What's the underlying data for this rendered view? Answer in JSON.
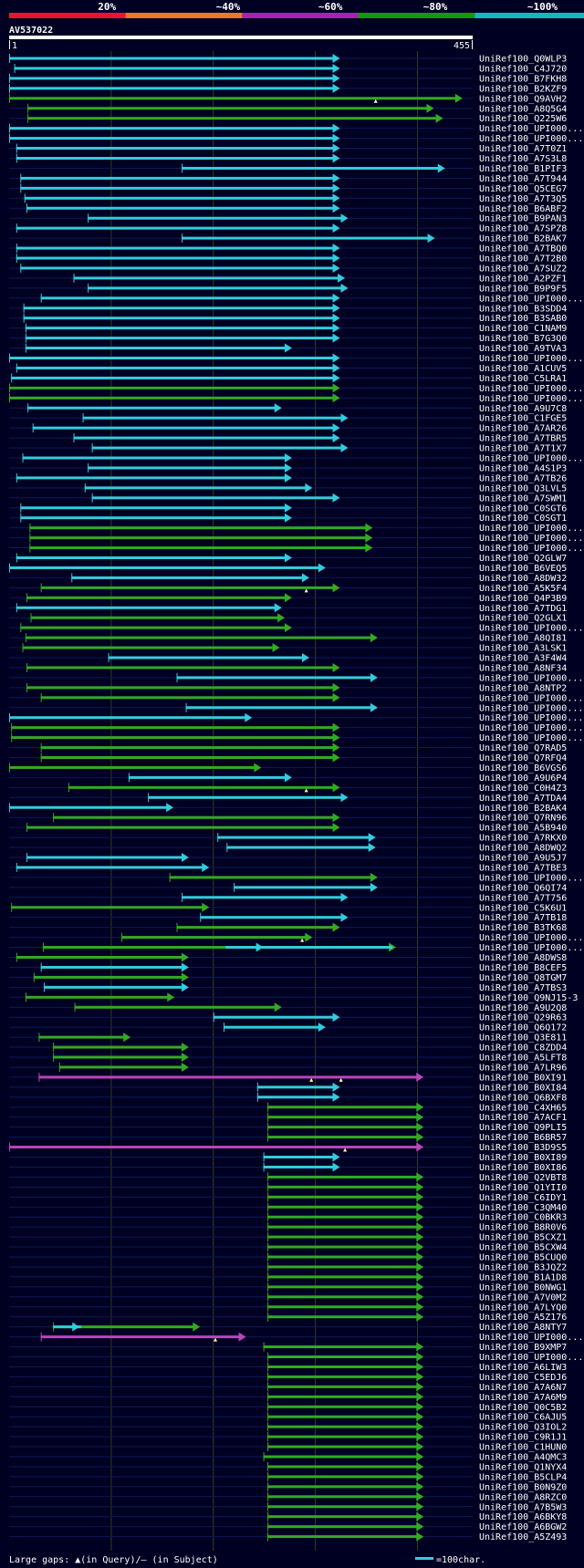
{
  "query": {
    "name": "AV537022",
    "start": "1",
    "end": "455",
    "length": 455
  },
  "scale_labels": [
    "20%",
    "~40%",
    "~60%",
    "~80%",
    "~100%"
  ],
  "scale_colors": [
    "#ee1133",
    "#ee7722",
    "#aa22aa",
    "#119911",
    "#11bbbb"
  ],
  "colors": {
    "cyan": "#33ccdd",
    "green": "#33aa22",
    "magenta": "#bb44bb",
    "background": "#000022"
  },
  "footer": {
    "legend_text": "Large gaps: ▲(in Query)/– (in Subject)",
    "scale_text": "=100char."
  },
  "chart_data": {
    "type": "alignment",
    "x_range": [
      1,
      455
    ],
    "hits": [
      {
        "name": "UniRef100_Q0WLP3",
        "s": 1,
        "e": 325,
        "c": "cyan",
        "t": 1
      },
      {
        "name": "UniRef100_C4J720",
        "s": 6,
        "e": 325,
        "c": "cyan",
        "t": 1
      },
      {
        "name": "UniRef100_B7FKH8",
        "s": 1,
        "e": 325,
        "c": "cyan",
        "t": 1
      },
      {
        "name": "UniRef100_B2KZF9",
        "s": 1,
        "e": 325,
        "c": "cyan",
        "t": 1
      },
      {
        "name": "UniRef100_Q9AVH2",
        "s": 1,
        "e": 445,
        "c": "green",
        "t": 1,
        "m": 360
      },
      {
        "name": "UniRef100_A8Q5G4",
        "s": 19,
        "e": 417,
        "c": "green",
        "t": 1
      },
      {
        "name": "UniRef100_Q225W6",
        "s": 19,
        "e": 426,
        "c": "green",
        "t": 1
      },
      {
        "name": "UniRef100_UPI000...",
        "s": 1,
        "e": 325,
        "c": "cyan",
        "t": 1
      },
      {
        "name": "UniRef100_UPI000...",
        "s": 1,
        "e": 325,
        "c": "cyan",
        "t": 1
      },
      {
        "name": "UniRef100_A7T0Z1",
        "s": 8,
        "e": 325,
        "c": "cyan",
        "t": 1
      },
      {
        "name": "UniRef100_A7S3L8",
        "s": 8,
        "e": 325,
        "c": "cyan",
        "t": 1
      },
      {
        "name": "UniRef100_B1PIF3",
        "s": 170,
        "e": 428,
        "c": "cyan",
        "t": 1
      },
      {
        "name": "UniRef100_A7T944",
        "s": 12,
        "e": 325,
        "c": "cyan",
        "t": 1
      },
      {
        "name": "UniRef100_Q5CEG7",
        "s": 12,
        "e": 325,
        "c": "cyan",
        "t": 1
      },
      {
        "name": "UniRef100_A7T3Q5",
        "s": 16,
        "e": 325,
        "c": "cyan",
        "t": 1
      },
      {
        "name": "UniRef100_B6ABF2",
        "s": 18,
        "e": 325,
        "c": "cyan",
        "t": 1
      },
      {
        "name": "UniRef100_B9PAN3",
        "s": 78,
        "e": 333,
        "c": "cyan",
        "t": 1
      },
      {
        "name": "UniRef100_A7SPZ8",
        "s": 8,
        "e": 325,
        "c": "cyan",
        "t": 1
      },
      {
        "name": "UniRef100_B2BAK7",
        "s": 170,
        "e": 418,
        "c": "cyan",
        "t": 1
      },
      {
        "name": "UniRef100_A7TBQ0",
        "s": 8,
        "e": 325,
        "c": "cyan",
        "t": 1
      },
      {
        "name": "UniRef100_A7T2B0",
        "s": 8,
        "e": 325,
        "c": "cyan",
        "t": 1
      },
      {
        "name": "UniRef100_A7SUZ2",
        "s": 12,
        "e": 325,
        "c": "cyan",
        "t": 1
      },
      {
        "name": "UniRef100_A2PZF1",
        "s": 64,
        "e": 330,
        "c": "cyan",
        "t": 1
      },
      {
        "name": "UniRef100_B9P9F5",
        "s": 78,
        "e": 333,
        "c": "cyan",
        "t": 1
      },
      {
        "name": "UniRef100_UPI000...",
        "s": 32,
        "e": 325,
        "c": "cyan",
        "t": 1
      },
      {
        "name": "UniRef100_B3SDD4",
        "s": 15,
        "e": 325,
        "c": "cyan",
        "t": 1
      },
      {
        "name": "UniRef100_B3SAB0",
        "s": 15,
        "e": 325,
        "c": "cyan",
        "t": 1
      },
      {
        "name": "UniRef100_C1NAM9",
        "s": 17,
        "e": 325,
        "c": "cyan",
        "t": 1
      },
      {
        "name": "UniRef100_B7G3Q0",
        "s": 17,
        "e": 325,
        "c": "cyan",
        "t": 1
      },
      {
        "name": "UniRef100_A9TVA3",
        "s": 17,
        "e": 278,
        "c": "cyan",
        "t": 1
      },
      {
        "name": "UniRef100_UPI000...",
        "s": 1,
        "e": 325,
        "c": "cyan",
        "t": 1
      },
      {
        "name": "UniRef100_A1CUV5",
        "s": 8,
        "e": 325,
        "c": "cyan",
        "t": 1
      },
      {
        "name": "UniRef100_C5LRA1",
        "s": 3,
        "e": 325,
        "c": "cyan",
        "t": 1
      },
      {
        "name": "UniRef100_UPI000...",
        "s": 1,
        "e": 325,
        "c": "green",
        "t": 1
      },
      {
        "name": "UniRef100_UPI000...",
        "s": 1,
        "e": 325,
        "c": "green",
        "t": 1
      },
      {
        "name": "UniRef100_A9U7C8",
        "s": 19,
        "e": 268,
        "c": "cyan",
        "t": 1
      },
      {
        "name": "UniRef100_C1FGE5",
        "s": 73,
        "e": 333,
        "c": "cyan",
        "t": 1
      },
      {
        "name": "UniRef100_A7AR26",
        "s": 24,
        "e": 325,
        "c": "cyan",
        "t": 1
      },
      {
        "name": "UniRef100_A7TBR5",
        "s": 64,
        "e": 325,
        "c": "cyan",
        "t": 1
      },
      {
        "name": "UniRef100_A7T1X7",
        "s": 82,
        "e": 333,
        "c": "cyan",
        "t": 1
      },
      {
        "name": "UniRef100_UPI000...",
        "s": 14,
        "e": 278,
        "c": "cyan",
        "t": 1
      },
      {
        "name": "UniRef100_A4S1P3",
        "s": 78,
        "e": 278,
        "c": "cyan",
        "t": 1
      },
      {
        "name": "UniRef100_A7TB26",
        "s": 8,
        "e": 278,
        "c": "cyan",
        "t": 1
      },
      {
        "name": "UniRef100_Q3LVL5",
        "s": 75,
        "e": 298,
        "c": "cyan",
        "t": 1
      },
      {
        "name": "UniRef100_A7SWM1",
        "s": 82,
        "e": 325,
        "c": "cyan",
        "t": 1
      },
      {
        "name": "UniRef100_C0SGT6",
        "s": 12,
        "e": 278,
        "c": "cyan",
        "t": 1
      },
      {
        "name": "UniRef100_C0SGT1",
        "s": 12,
        "e": 278,
        "c": "cyan",
        "t": 1
      },
      {
        "name": "UniRef100_UPI000...",
        "s": 21,
        "e": 357,
        "c": "green",
        "t": 1
      },
      {
        "name": "UniRef100_UPI000...",
        "s": 21,
        "e": 357,
        "c": "green",
        "t": 1
      },
      {
        "name": "UniRef100_UPI000...",
        "s": 21,
        "e": 357,
        "c": "green",
        "t": 1
      },
      {
        "name": "UniRef100_Q2GLW7",
        "s": 8,
        "e": 278,
        "c": "cyan",
        "t": 1
      },
      {
        "name": "UniRef100_B6VEQ5",
        "s": 1,
        "e": 311,
        "c": "cyan",
        "t": 1
      },
      {
        "name": "UniRef100_A8DW32",
        "s": 62,
        "e": 295,
        "c": "cyan",
        "t": 1
      },
      {
        "name": "UniRef100_A5K5F4",
        "s": 32,
        "e": 325,
        "c": "green",
        "t": 1,
        "m": 292
      },
      {
        "name": "UniRef100_Q4P3B9",
        "s": 18,
        "e": 278,
        "c": "green",
        "t": 1
      },
      {
        "name": "UniRef100_A7TDG1",
        "s": 8,
        "e": 268,
        "c": "cyan",
        "t": 1
      },
      {
        "name": "UniRef100_Q2GLX1",
        "s": 22,
        "e": 271,
        "c": "green",
        "t": 1
      },
      {
        "name": "UniRef100_UPI000...",
        "s": 12,
        "e": 278,
        "c": "green",
        "t": 1
      },
      {
        "name": "UniRef100_A8QI81",
        "s": 17,
        "e": 362,
        "c": "green",
        "t": 1
      },
      {
        "name": "UniRef100_A3LSK1",
        "s": 14,
        "e": 266,
        "c": "green",
        "t": 1
      },
      {
        "name": "UniRef100_A3F4W4",
        "s": 98,
        "e": 295,
        "c": "cyan",
        "t": 1
      },
      {
        "name": "UniRef100_A8NF34",
        "s": 18,
        "e": 325,
        "c": "green",
        "t": 1
      },
      {
        "name": "UniRef100_UPI000...",
        "s": 165,
        "e": 362,
        "c": "cyan",
        "t": 1
      },
      {
        "name": "UniRef100_A8NTP2",
        "s": 18,
        "e": 325,
        "c": "green",
        "t": 1
      },
      {
        "name": "UniRef100_UPI000...",
        "s": 32,
        "e": 325,
        "c": "green",
        "t": 1
      },
      {
        "name": "UniRef100_UPI000...",
        "s": 174,
        "e": 362,
        "c": "cyan",
        "t": 1
      },
      {
        "name": "UniRef100_UPI000...",
        "s": 1,
        "e": 239,
        "c": "cyan",
        "t": 1
      },
      {
        "name": "UniRef100_UPI000...",
        "s": 3,
        "e": 325,
        "c": "green",
        "t": 1
      },
      {
        "name": "UniRef100_UPI000...",
        "s": 3,
        "e": 325,
        "c": "green",
        "t": 1
      },
      {
        "name": "UniRef100_Q7RAD5",
        "s": 32,
        "e": 325,
        "c": "green",
        "t": 1
      },
      {
        "name": "UniRef100_Q7RFQ4",
        "s": 32,
        "e": 325,
        "c": "green",
        "t": 1
      },
      {
        "name": "UniRef100_B6VGS6",
        "s": 1,
        "e": 248,
        "c": "green",
        "t": 1
      },
      {
        "name": "UniRef100_A9U6P4",
        "s": 118,
        "e": 278,
        "c": "cyan",
        "t": 1
      },
      {
        "name": "UniRef100_C0H4Z3",
        "s": 59,
        "e": 325,
        "c": "green",
        "t": 1,
        "m": 292
      },
      {
        "name": "UniRef100_A7TDA4",
        "s": 137,
        "e": 333,
        "c": "cyan",
        "t": 1
      },
      {
        "name": "UniRef100_B2BAK4",
        "s": 1,
        "e": 162,
        "c": "cyan",
        "t": 1
      },
      {
        "name": "UniRef100_Q7RN96",
        "s": 44,
        "e": 325,
        "c": "green",
        "t": 1
      },
      {
        "name": "UniRef100_A5B940",
        "s": 18,
        "e": 325,
        "c": "green",
        "t": 1
      },
      {
        "name": "UniRef100_A7RKX0",
        "s": 205,
        "e": 360,
        "c": "cyan",
        "t": 1
      },
      {
        "name": "UniRef100_A8DWQ2",
        "s": 214,
        "e": 360,
        "c": "cyan",
        "t": 1
      },
      {
        "name": "UniRef100_A9U5J7",
        "s": 18,
        "e": 177,
        "c": "cyan",
        "t": 1
      },
      {
        "name": "UniRef100_A7TBE3",
        "s": 8,
        "e": 197,
        "c": "cyan",
        "t": 1
      },
      {
        "name": "UniRef100_UPI000...",
        "s": 158,
        "e": 362,
        "c": "green",
        "t": 1
      },
      {
        "name": "UniRef100_Q6QI74",
        "s": 221,
        "e": 362,
        "c": "cyan",
        "t": 1
      },
      {
        "name": "UniRef100_A7T756",
        "s": 170,
        "e": 333,
        "c": "cyan",
        "t": 1
      },
      {
        "name": "UniRef100_C5K6U1",
        "s": 3,
        "e": 197,
        "c": "green",
        "t": 1
      },
      {
        "name": "UniRef100_A7TB18",
        "s": 188,
        "e": 333,
        "c": "cyan",
        "t": 1
      },
      {
        "name": "UniRef100_B3TK68",
        "s": 165,
        "e": 325,
        "c": "green",
        "t": 1
      },
      {
        "name": "UniRef100_UPI000...",
        "s": 111,
        "e": 298,
        "c": "green",
        "t": 1,
        "m": 288
      },
      {
        "name": "UniRef100_UPI000...",
        "s": 34,
        "e": 380,
        "c": "green",
        "t": 1,
        "c2": "cyan",
        "s2": 213,
        "arrows2": [
          250
        ]
      },
      {
        "name": "UniRef100_A8DWS8",
        "s": 8,
        "e": 177,
        "c": "green",
        "t": 1
      },
      {
        "name": "UniRef100_B8CEF5",
        "s": 32,
        "e": 177,
        "c": "cyan",
        "t": 1
      },
      {
        "name": "UniRef100_Q8TGM7",
        "s": 25,
        "e": 177,
        "c": "green",
        "t": 1
      },
      {
        "name": "UniRef100_A7TBS3",
        "s": 35,
        "e": 177,
        "c": "cyan",
        "t": 1
      },
      {
        "name": "UniRef100_Q9NJ15-3",
        "s": 17,
        "e": 163,
        "c": "green",
        "t": 1
      },
      {
        "name": "UniRef100_A9U2Q8",
        "s": 65,
        "e": 268,
        "c": "green",
        "t": 1
      },
      {
        "name": "UniRef100_Q29R63",
        "s": 201,
        "e": 325,
        "c": "cyan",
        "t": 1
      },
      {
        "name": "UniRef100_Q6Q172",
        "s": 211,
        "e": 311,
        "c": "cyan",
        "t": 1
      },
      {
        "name": "UniRef100_Q3E811",
        "s": 30,
        "e": 120,
        "c": "green",
        "t": 1
      },
      {
        "name": "UniRef100_C8ZDD4",
        "s": 44,
        "e": 177,
        "c": "green",
        "t": 1
      },
      {
        "name": "UniRef100_A5LFT8",
        "s": 44,
        "e": 177,
        "c": "green",
        "t": 1
      },
      {
        "name": "UniRef100_A7LR96",
        "s": 50,
        "e": 177,
        "c": "green",
        "t": 1
      },
      {
        "name": "UniRef100_B0XI91",
        "s": 30,
        "e": 407,
        "c": "magenta",
        "t": 1,
        "m": 297,
        "m2": 326
      },
      {
        "name": "UniRef100_B0XI84",
        "s": 244,
        "e": 325,
        "c": "cyan",
        "t": 1
      },
      {
        "name": "UniRef100_Q6BXF8",
        "s": 244,
        "e": 325,
        "c": "cyan",
        "t": 1
      },
      {
        "name": "UniRef100_C4XH65",
        "s": 254,
        "e": 407,
        "c": "green",
        "t": 1
      },
      {
        "name": "UniRef100_A7ACF1",
        "s": 254,
        "e": 407,
        "c": "green",
        "t": 1
      },
      {
        "name": "UniRef100_Q9PLI5",
        "s": 254,
        "e": 407,
        "c": "green",
        "t": 1
      },
      {
        "name": "UniRef100_B6BR57",
        "s": 254,
        "e": 407,
        "c": "green",
        "t": 1
      },
      {
        "name": "UniRef100_B3D9S5",
        "s": 1,
        "e": 407,
        "c": "magenta",
        "t": 1,
        "m": 330
      },
      {
        "name": "UniRef100_B0XI89",
        "s": 250,
        "e": 325,
        "c": "cyan",
        "t": 1
      },
      {
        "name": "UniRef100_B0XI86",
        "s": 250,
        "e": 325,
        "c": "cyan",
        "t": 1
      },
      {
        "name": "UniRef100_Q2VBT8",
        "s": 254,
        "e": 407,
        "c": "green",
        "t": 1
      },
      {
        "name": "UniRef100_Q1YII0",
        "s": 254,
        "e": 407,
        "c": "green",
        "t": 1
      },
      {
        "name": "UniRef100_C6IDY1",
        "s": 254,
        "e": 407,
        "c": "green",
        "t": 1
      },
      {
        "name": "UniRef100_C3QM40",
        "s": 254,
        "e": 407,
        "c": "green",
        "t": 1
      },
      {
        "name": "UniRef100_C0BKR3",
        "s": 254,
        "e": 407,
        "c": "green",
        "t": 1
      },
      {
        "name": "UniRef100_B8R0V6",
        "s": 254,
        "e": 407,
        "c": "green",
        "t": 1
      },
      {
        "name": "UniRef100_B5CXZ1",
        "s": 254,
        "e": 407,
        "c": "green",
        "t": 1
      },
      {
        "name": "UniRef100_B5CXW4",
        "s": 254,
        "e": 407,
        "c": "green",
        "t": 1
      },
      {
        "name": "UniRef100_B5CUQ0",
        "s": 254,
        "e": 407,
        "c": "green",
        "t": 1
      },
      {
        "name": "UniRef100_B3JQZ2",
        "s": 254,
        "e": 407,
        "c": "green",
        "t": 1
      },
      {
        "name": "UniRef100_B1A1D8",
        "s": 254,
        "e": 407,
        "c": "green",
        "t": 1
      },
      {
        "name": "UniRef100_B0NWG1",
        "s": 254,
        "e": 407,
        "c": "green",
        "t": 1
      },
      {
        "name": "UniRef100_A7V0M2",
        "s": 254,
        "e": 407,
        "c": "green",
        "t": 1
      },
      {
        "name": "UniRef100_A7LYQ0",
        "s": 254,
        "e": 407,
        "c": "green",
        "t": 1
      },
      {
        "name": "UniRef100_A5Z176",
        "s": 254,
        "e": 407,
        "c": "green",
        "t": 1
      },
      {
        "name": "UniRef100_A8NTY7",
        "s": 44,
        "e": 188,
        "c": "green",
        "t": 1,
        "c2": "cyan",
        "s2": 44,
        "e2": 75,
        "arrows2": [
          70
        ]
      },
      {
        "name": "UniRef100_UPI000...",
        "s": 32,
        "e": 233,
        "c": "magenta",
        "t": 1,
        "m": 203
      },
      {
        "name": "UniRef100_B9XMP7",
        "s": 250,
        "e": 407,
        "c": "green",
        "t": 1
      },
      {
        "name": "UniRef100_UPI000...",
        "s": 254,
        "e": 407,
        "c": "green",
        "t": 1
      },
      {
        "name": "UniRef100_A6LIW3",
        "s": 254,
        "e": 407,
        "c": "green",
        "t": 1
      },
      {
        "name": "UniRef100_C5EDJ6",
        "s": 254,
        "e": 407,
        "c": "green",
        "t": 1
      },
      {
        "name": "UniRef100_A7A6N7",
        "s": 254,
        "e": 407,
        "c": "green",
        "t": 1
      },
      {
        "name": "UniRef100_A7A6M9",
        "s": 254,
        "e": 407,
        "c": "green",
        "t": 1
      },
      {
        "name": "UniRef100_Q0C5B2",
        "s": 254,
        "e": 407,
        "c": "green",
        "t": 1
      },
      {
        "name": "UniRef100_C6AJU5",
        "s": 254,
        "e": 407,
        "c": "green",
        "t": 1
      },
      {
        "name": "UniRef100_Q3IOL2",
        "s": 254,
        "e": 407,
        "c": "green",
        "t": 1
      },
      {
        "name": "UniRef100_C9R1J1",
        "s": 254,
        "e": 407,
        "c": "green",
        "t": 1
      },
      {
        "name": "UniRef100_C1HUN0",
        "s": 254,
        "e": 407,
        "c": "green",
        "t": 1
      },
      {
        "name": "UniRef100_A4QMC3",
        "s": 250,
        "e": 407,
        "c": "green",
        "t": 1
      },
      {
        "name": "UniRef100_Q1NYX4",
        "s": 254,
        "e": 407,
        "c": "green",
        "t": 1
      },
      {
        "name": "UniRef100_B5CLP4",
        "s": 254,
        "e": 407,
        "c": "green",
        "t": 1
      },
      {
        "name": "UniRef100_B0N9Z0",
        "s": 254,
        "e": 407,
        "c": "green",
        "t": 1
      },
      {
        "name": "UniRef100_A8RZC0",
        "s": 254,
        "e": 407,
        "c": "green",
        "t": 1
      },
      {
        "name": "UniRef100_A7B5W3",
        "s": 254,
        "e": 407,
        "c": "green",
        "t": 1
      },
      {
        "name": "UniRef100_A6BKY8",
        "s": 254,
        "e": 407,
        "c": "green",
        "t": 1
      },
      {
        "name": "UniRef100_A6BGW2",
        "s": 254,
        "e": 407,
        "c": "green",
        "t": 1
      },
      {
        "name": "UniRef100_A5Z493",
        "s": 254,
        "e": 407,
        "c": "green",
        "t": 1
      }
    ]
  }
}
